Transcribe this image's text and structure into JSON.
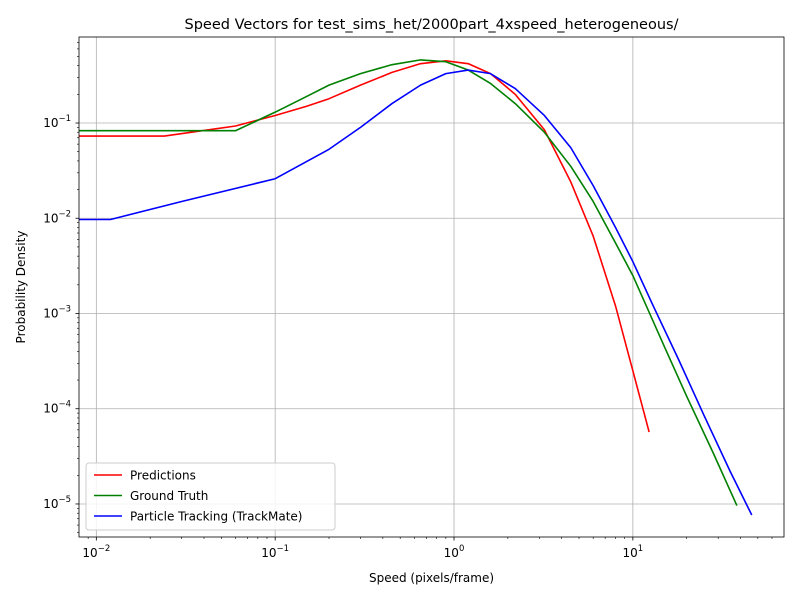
{
  "chart_data": {
    "type": "line",
    "title": "Speed Vectors for test_sims_het/2000part_4xspeed_heterogeneous/",
    "xlabel": "Speed (pixels/frame)",
    "ylabel": "Probability Density",
    "xscale": "log",
    "yscale": "log",
    "xlim": [
      0.008,
      70
    ],
    "ylim": [
      4.5e-06,
      0.8
    ],
    "grid": true,
    "legend": "lower-left",
    "x_ticks": [
      {
        "value": 0.01,
        "base": "10",
        "exp": "−2"
      },
      {
        "value": 0.1,
        "base": "10",
        "exp": "−1"
      },
      {
        "value": 1,
        "base": "10",
        "exp": "0"
      },
      {
        "value": 10,
        "base": "10",
        "exp": "1"
      }
    ],
    "y_ticks": [
      {
        "value": 1e-05,
        "base": "10",
        "exp": "−5"
      },
      {
        "value": 0.0001,
        "base": "10",
        "exp": "−4"
      },
      {
        "value": 0.001,
        "base": "10",
        "exp": "−3"
      },
      {
        "value": 0.01,
        "base": "10",
        "exp": "−2"
      },
      {
        "value": 0.1,
        "base": "10",
        "exp": "−1"
      }
    ],
    "series": [
      {
        "name": "Predictions",
        "color": "#ff0000",
        "x": [
          0.008,
          0.024,
          0.06,
          0.1,
          0.15,
          0.2,
          0.3,
          0.45,
          0.65,
          0.9,
          1.2,
          1.6,
          2.2,
          3.2,
          4.5,
          6,
          8,
          10,
          12.3
        ],
        "y": [
          0.073,
          0.073,
          0.093,
          0.12,
          0.15,
          0.18,
          0.25,
          0.34,
          0.42,
          0.45,
          0.42,
          0.33,
          0.2,
          0.085,
          0.024,
          0.0065,
          0.0012,
          0.00025,
          5.8e-05
        ]
      },
      {
        "name": "Ground Truth",
        "color": "#008000",
        "x": [
          0.008,
          0.06,
          0.1,
          0.15,
          0.2,
          0.3,
          0.45,
          0.65,
          0.9,
          1.2,
          1.6,
          2.2,
          3.2,
          4.5,
          6,
          8,
          10,
          15,
          20,
          28,
          38
        ],
        "y": [
          0.083,
          0.083,
          0.13,
          0.19,
          0.25,
          0.33,
          0.41,
          0.46,
          0.44,
          0.36,
          0.26,
          0.16,
          0.08,
          0.035,
          0.015,
          0.0055,
          0.0025,
          0.00045,
          0.000135,
          3.5e-05,
          9.8e-06
        ]
      },
      {
        "name": "Particle Tracking (TrackMate)",
        "color": "#0000ff",
        "x": [
          0.008,
          0.012,
          0.03,
          0.1,
          0.2,
          0.3,
          0.45,
          0.65,
          0.9,
          1.2,
          1.6,
          2.2,
          3.2,
          4.5,
          6,
          8,
          10,
          13,
          18,
          25,
          35,
          46
        ],
        "y": [
          0.0097,
          0.0097,
          0.015,
          0.026,
          0.053,
          0.09,
          0.16,
          0.25,
          0.33,
          0.36,
          0.33,
          0.23,
          0.12,
          0.055,
          0.022,
          0.008,
          0.0035,
          0.0012,
          0.00033,
          8.5e-05,
          2.2e-05,
          7.8e-06
        ]
      }
    ]
  }
}
